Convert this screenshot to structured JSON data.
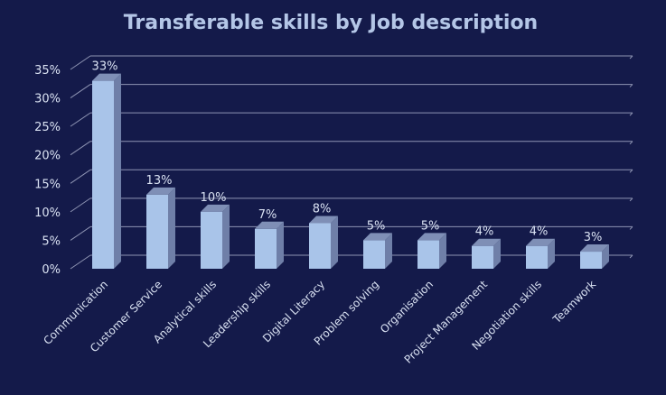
{
  "colors": {
    "background": "#141a4a",
    "title": "#b4c6e7",
    "text": "#d9e1f2",
    "grid": "#8e94b3",
    "bar_front": "#a9c4e9",
    "bar_side": "#6f7fa8",
    "bar_top": "#7f8fb6"
  },
  "chart_data": {
    "type": "bar",
    "title": "Transferable skills by Job description",
    "categories": [
      "Communication",
      "Customer Service",
      "Analytical skills",
      "Leadership skills",
      "Digital Literacy",
      "Problem solving",
      "Organisation",
      "Project Management",
      "Negotiation skills",
      "Teamwork"
    ],
    "values": [
      33,
      13,
      10,
      7,
      8,
      5,
      5,
      4,
      4,
      3
    ],
    "data_labels": [
      "33%",
      "13%",
      "10%",
      "7%",
      "8%",
      "5%",
      "5%",
      "4%",
      "4%",
      "3%"
    ],
    "y_ticks": [
      "0%",
      "5%",
      "10%",
      "15%",
      "20%",
      "25%",
      "30%",
      "35%"
    ],
    "ylim": [
      0,
      35
    ],
    "grid": true,
    "style": "3d-column"
  }
}
